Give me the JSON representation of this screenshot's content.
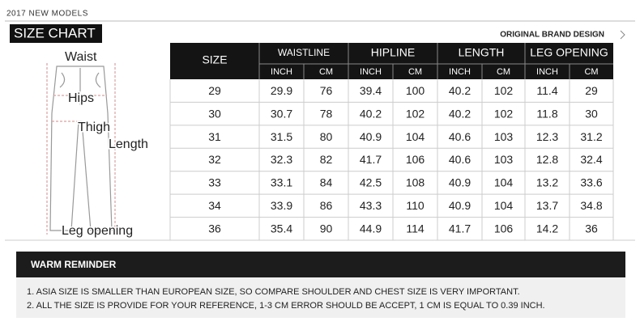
{
  "header": {
    "models": "2017 NEW MODELS",
    "title": "SIZE CHART",
    "brand": "ORIGINAL BRAND DESIGN"
  },
  "diagram": {
    "labels": [
      "Waist",
      "Hips",
      "Thigh",
      "Length",
      "Leg opening"
    ]
  },
  "table": {
    "size_header": "SIZE",
    "groups": [
      "WAISTLINE",
      "HIPLINE",
      "LENGTH",
      "LEG OPENING"
    ],
    "subheaders": [
      "INCH",
      "CM",
      "INCH",
      "CM",
      "INCH",
      "CM",
      "INCH",
      "CM"
    ],
    "rows": [
      [
        "29",
        "29.9",
        "76",
        "39.4",
        "100",
        "40.2",
        "102",
        "11.4",
        "29"
      ],
      [
        "30",
        "30.7",
        "78",
        "40.2",
        "102",
        "40.2",
        "102",
        "11.8",
        "30"
      ],
      [
        "31",
        "31.5",
        "80",
        "40.9",
        "104",
        "40.6",
        "103",
        "12.3",
        "31.2"
      ],
      [
        "32",
        "32.3",
        "82",
        "41.7",
        "106",
        "40.6",
        "103",
        "12.8",
        "32.4"
      ],
      [
        "33",
        "33.1",
        "84",
        "42.5",
        "108",
        "40.9",
        "104",
        "13.2",
        "33.6"
      ],
      [
        "34",
        "33.9",
        "86",
        "43.3",
        "110",
        "40.9",
        "104",
        "13.7",
        "34.8"
      ],
      [
        "36",
        "35.4",
        "90",
        "44.9",
        "114",
        "41.7",
        "106",
        "14.2",
        "36"
      ]
    ]
  },
  "reminder": {
    "title": "WARM REMINDER",
    "items": [
      "1.  ASIA SIZE IS SMALLER THAN EUROPEAN SIZE, SO COMPARE SHOULDER AND CHEST SIZE IS VERY IMPORTANT.",
      "2.  ALL THE SIZE IS PROVIDE FOR YOUR REFERENCE, 1-3 CM ERROR SHOULD BE ACCEPT, 1 CM IS EQUAL TO 0.39 INCH."
    ]
  }
}
